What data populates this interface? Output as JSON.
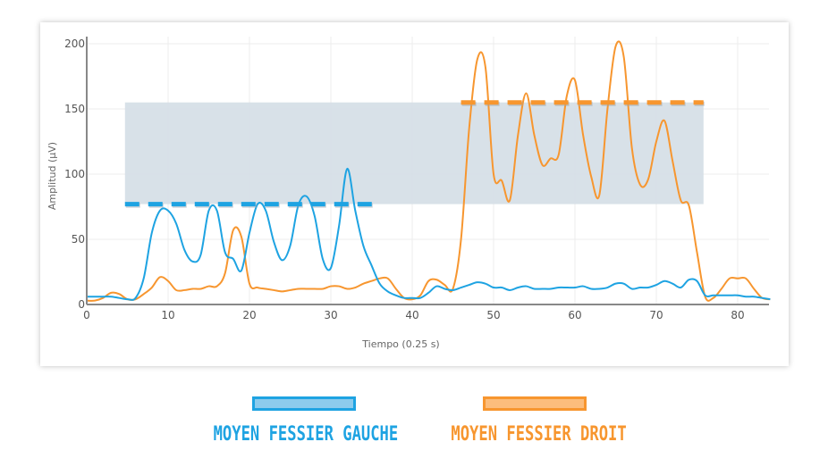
{
  "chart_data": {
    "type": "line",
    "title": "",
    "xlabel": "Tiempo (0.25 s)",
    "ylabel": "Amplitud (µV)",
    "xlim": [
      0,
      84
    ],
    "ylim": [
      0,
      200
    ],
    "x_ticks": [
      "0",
      "10",
      "20",
      "30",
      "40",
      "50",
      "60",
      "70",
      "80"
    ],
    "y_ticks": [
      "0",
      "50",
      "100",
      "150",
      "200"
    ],
    "grid": true,
    "legend_position": "bottom",
    "shaded_band": {
      "x_range": [
        4.7,
        75.8
      ],
      "y_range": [
        77,
        155
      ],
      "color": "#d6dfe7"
    },
    "reference_lines": [
      {
        "series": "MOYEN FESSIER GAUCHE",
        "style": "dashed",
        "y": 77,
        "x_range": [
          4.7,
          35.3
        ],
        "color": "#1ea3e2"
      },
      {
        "series": "MOYEN FESSIER DROIT",
        "style": "dashed",
        "y": 155,
        "x_range": [
          46,
          75.8
        ],
        "color": "#f7962f"
      }
    ],
    "series": [
      {
        "name": "MOYEN FESSIER GAUCHE",
        "color": "#1ea3e2",
        "x": [
          0,
          2,
          3,
          4,
          5,
          6,
          7,
          8,
          9,
          10,
          11,
          12,
          13,
          14,
          15,
          16,
          17,
          18,
          19,
          20,
          21,
          22,
          23,
          24,
          25,
          26,
          27,
          28,
          29,
          30,
          31,
          32,
          33,
          34,
          35,
          36,
          37,
          38,
          39,
          40,
          41,
          42,
          43,
          44,
          45,
          46,
          47,
          48,
          49,
          50,
          51,
          52,
          53,
          54,
          55,
          56,
          57,
          58,
          59,
          60,
          61,
          62,
          63,
          64,
          65,
          66,
          67,
          68,
          69,
          70,
          71,
          72,
          73,
          74,
          75,
          76,
          77,
          78,
          79,
          80,
          81,
          82,
          83,
          84
        ],
        "values": [
          6,
          6,
          6,
          5,
          4,
          5,
          20,
          55,
          72,
          72,
          62,
          42,
          33,
          38,
          72,
          72,
          40,
          35,
          26,
          55,
          77,
          72,
          48,
          34,
          45,
          76,
          83,
          68,
          35,
          28,
          60,
          104,
          72,
          45,
          30,
          16,
          10,
          7,
          5,
          5,
          5,
          9,
          14,
          12,
          11,
          13,
          15,
          17,
          16,
          13,
          13,
          11,
          13,
          14,
          12,
          12,
          12,
          13,
          13,
          13,
          14,
          12,
          12,
          13,
          16,
          16,
          12,
          13,
          13,
          15,
          18,
          16,
          13,
          19,
          18,
          7,
          7,
          7,
          7,
          7,
          6,
          6,
          5,
          4
        ]
      },
      {
        "name": "MOYEN FESSIER DROIT",
        "color": "#f7962f",
        "x": [
          0,
          1,
          2,
          3,
          4,
          5,
          6,
          7,
          8,
          9,
          10,
          11,
          12,
          13,
          14,
          15,
          16,
          17,
          18,
          19,
          20,
          21,
          22,
          23,
          24,
          25,
          26,
          27,
          28,
          29,
          30,
          31,
          32,
          33,
          34,
          35,
          36,
          37,
          38,
          39,
          40,
          41,
          42,
          43,
          44,
          45,
          46,
          47,
          48,
          49,
          50,
          51,
          52,
          53,
          54,
          55,
          56,
          57,
          58,
          59,
          60,
          61,
          62,
          63,
          64,
          65,
          66,
          67,
          68,
          69,
          70,
          71,
          72,
          73,
          74,
          75,
          76,
          77,
          78,
          79,
          80,
          81,
          82,
          83,
          84
        ],
        "values": [
          3,
          3,
          5,
          9,
          8,
          4,
          4,
          8,
          13,
          21,
          18,
          11,
          11,
          12,
          12,
          14,
          14,
          24,
          57,
          52,
          16,
          13,
          12,
          11,
          10,
          11,
          12,
          12,
          12,
          12,
          14,
          14,
          12,
          13,
          16,
          18,
          20,
          20,
          12,
          5,
          4,
          7,
          18,
          19,
          15,
          12,
          50,
          135,
          188,
          182,
          100,
          95,
          80,
          130,
          162,
          130,
          107,
          112,
          115,
          160,
          172,
          130,
          98,
          84,
          150,
          198,
          190,
          120,
          92,
          96,
          125,
          141,
          110,
          80,
          76,
          40,
          6,
          5,
          12,
          20,
          20,
          20,
          12,
          5,
          4
        ]
      }
    ]
  },
  "legend": {
    "items": [
      {
        "label": "MOYEN FESSIER GAUCHE",
        "color": "#1ea3e2",
        "fill": "#8ccbed"
      },
      {
        "label": "MOYEN FESSIER DROIT",
        "color": "#f7962f",
        "fill": "#fcbd7c"
      }
    ]
  }
}
